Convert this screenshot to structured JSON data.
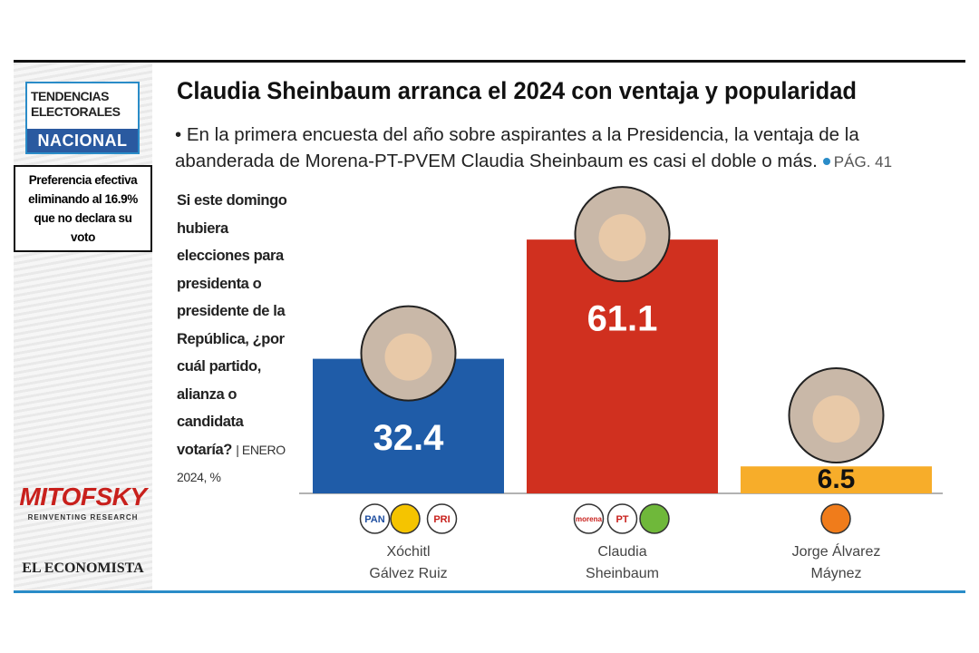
{
  "sidebar": {
    "heading": [
      "TENDENCIAS",
      "ELECTORALES"
    ],
    "region": "NACIONAL",
    "note": "Preferencia efectiva eliminando al 16.9% que no declara su voto",
    "brand": "MITOFSKY",
    "brand_tagline": "REINVENTING RESEARCH",
    "publisher": "EL ECONOMISTA"
  },
  "chart_data": {
    "type": "bar",
    "title": "Claudia Sheinbaum arranca el 2024 con ventaja y popularidad",
    "subtitle": "• En la primera encuesta del año sobre aspirantes a la Presidencia, la ventaja de la abanderada de Morena-PT-PVEM Claudia Sheinbaum es casi el doble o más.",
    "page_ref": "PÁG. 41",
    "question": "Si este domingo hubiera elecciones para presidenta o presidente de la República, ¿por cuál partido, alianza o candidata votaría?",
    "source_note": "| ENERO 2024, %",
    "categories": [
      "Xóchitl\nGálvez Ruiz",
      "Claudia\nSheinbaum",
      "Jorge Álvarez\nMáynez"
    ],
    "values": [
      32.4,
      61.1,
      6.5
    ],
    "colors": [
      "#1f5ca8",
      "#d0301f",
      "#f7ad2a"
    ],
    "parties": [
      [
        "PAN",
        "PRI"
      ],
      [
        "morena",
        "PT"
      ],
      []
    ]
  }
}
